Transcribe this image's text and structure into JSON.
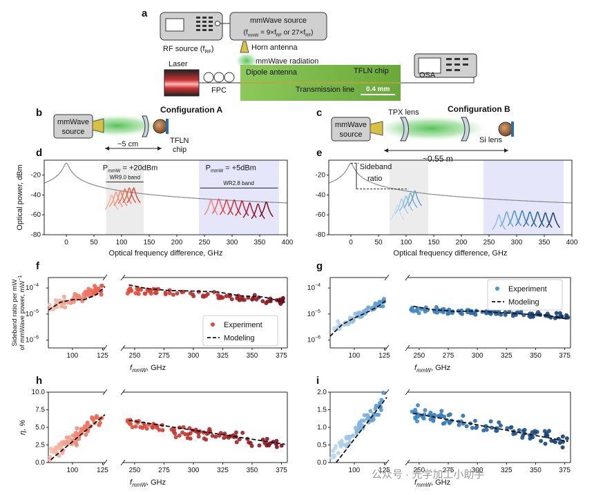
{
  "panel_labels": {
    "a": "a",
    "b": "b",
    "c": "c",
    "d": "d",
    "e": "e",
    "f": "f",
    "g": "g",
    "h": "h",
    "i": "i"
  },
  "setup": {
    "rf_source": "RF source (f",
    "rf_sub": "RF",
    "rf_close": ")",
    "mmw_source_title": "mmWave source",
    "mmw_formula_1": "(f",
    "mmw_formula_sub1": "mmW",
    "mmw_formula_2": " = 9×f",
    "mmw_formula_sub2": "RF",
    "mmw_formula_3": " or 27×f",
    "mmw_formula_sub3": "RF",
    "mmw_formula_4": ")",
    "horn_antenna": "Horn antenna",
    "mmw_radiation": "mmWave radiation",
    "laser": "Laser",
    "fpc": "FPC",
    "dipole_antenna": "Dipole antenna",
    "tfln_chip": "TFLN chip",
    "transmission_line": "Transmission line",
    "scale_bar": "0.4 mm",
    "osa": "OSA"
  },
  "config_a": {
    "title": "Configuration A",
    "source": [
      "mmWave",
      "source"
    ],
    "distance": "~5 cm",
    "chip": [
      "TFLN",
      "chip"
    ],
    "color": "#e0263a"
  },
  "config_b": {
    "title": "Configuration B",
    "source": [
      "mmWave",
      "source"
    ],
    "tpx": "TPX lens",
    "si": "Si lens",
    "distance": "~0.55 m",
    "color": "#1f77c4"
  },
  "chart_data": [
    {
      "id": "d",
      "type": "line",
      "xlabel": "Optical frequency difference, GHz",
      "ylabel": "Optical power, dBm",
      "xlim": [
        -40,
        400
      ],
      "ylim": [
        -80,
        -5
      ],
      "xticks": [
        0,
        50,
        100,
        150,
        200,
        250,
        300,
        350,
        400
      ],
      "yticks": [
        -80,
        -60,
        -40,
        -20
      ],
      "annotations": {
        "p_left": "P",
        "p_left_sub": "mmW",
        "p_left_val": " = +20dBm",
        "band_left": "WR9.0 band",
        "p_right": "P",
        "p_right_sub": "mmW",
        "p_right_val": " = +5dBm",
        "band_right": "WR2.8 band"
      },
      "bands": [
        [
          72,
          140
        ],
        [
          240,
          385
        ]
      ],
      "carrier": {
        "x": 0,
        "peak": -8
      },
      "series": [
        {
          "name": "s1",
          "center": 82,
          "peak": -40
        },
        {
          "name": "s2",
          "center": 90,
          "peak": -37
        },
        {
          "name": "s3",
          "center": 98,
          "peak": -36
        },
        {
          "name": "s4",
          "center": 106,
          "peak": -34
        },
        {
          "name": "s5",
          "center": 114,
          "peak": -33
        },
        {
          "name": "s6",
          "center": 122,
          "peak": -33
        },
        {
          "name": "r1",
          "center": 262,
          "peak": -45
        },
        {
          "name": "r2",
          "center": 276,
          "peak": -44
        },
        {
          "name": "r3",
          "center": 290,
          "peak": -45
        },
        {
          "name": "r4",
          "center": 304,
          "peak": -45
        },
        {
          "name": "r5",
          "center": 318,
          "peak": -46
        },
        {
          "name": "r6",
          "center": 332,
          "peak": -48
        },
        {
          "name": "r7",
          "center": 347,
          "peak": -49
        },
        {
          "name": "r8",
          "center": 362,
          "peak": -47
        }
      ],
      "colors": {
        "carrier": "#888888",
        "left": [
          "#f8b29a",
          "#f59a80",
          "#f2876a",
          "#ee7255",
          "#e85c42",
          "#e14733"
        ],
        "right": [
          "#f08a7a",
          "#e8605a",
          "#dc3c3a",
          "#cf2a2e",
          "#bf1e28",
          "#a6182a",
          "#8c1020",
          "#701020"
        ]
      }
    },
    {
      "id": "e",
      "type": "line",
      "xlabel": "Optical frequency difference, GHz",
      "xlim": [
        -40,
        400
      ],
      "ylim": [
        -80,
        -5
      ],
      "xticks": [
        0,
        50,
        100,
        150,
        200,
        250,
        300,
        350,
        400
      ],
      "yticks": [
        -80,
        -60,
        -40,
        -20
      ],
      "annotations": {
        "sideband": "Sideband",
        "ratio": "ratio"
      },
      "bands": [
        [
          70,
          140
        ],
        [
          240,
          385
        ]
      ],
      "carrier": {
        "x": 0,
        "peak": -8
      },
      "series": [
        {
          "name": "s1",
          "center": 84,
          "peak": -50
        },
        {
          "name": "s2",
          "center": 92,
          "peak": -44
        },
        {
          "name": "s3",
          "center": 100,
          "peak": -41
        },
        {
          "name": "s4",
          "center": 108,
          "peak": -38
        },
        {
          "name": "s5",
          "center": 116,
          "peak": -36
        },
        {
          "name": "r1",
          "center": 268,
          "peak": -60
        },
        {
          "name": "r2",
          "center": 282,
          "peak": -57
        },
        {
          "name": "r3",
          "center": 296,
          "peak": -56
        },
        {
          "name": "r4",
          "center": 310,
          "peak": -56
        },
        {
          "name": "r5",
          "center": 324,
          "peak": -57
        },
        {
          "name": "r6",
          "center": 338,
          "peak": -57
        },
        {
          "name": "r7",
          "center": 352,
          "peak": -58
        },
        {
          "name": "r8",
          "center": 366,
          "peak": -58
        }
      ],
      "colors": {
        "carrier": "#888888",
        "left": [
          "#c9e0f1",
          "#aed0ea",
          "#92c0e2",
          "#78b0d9",
          "#5ea0d0"
        ],
        "right": [
          "#8cbde3",
          "#6aa8da",
          "#4d93cf",
          "#3a80c2",
          "#2b6db2",
          "#205ea2",
          "#184e8e",
          "#103e78"
        ]
      }
    },
    {
      "id": "f",
      "type": "scatter",
      "ylabel": "Sideband ratio per mW of mmWave power, mW",
      "ylabel_line1": "Sideband ratio per mW",
      "ylabel_line2": "of mmWave power, mW",
      "ylabel_sup": "−1",
      "xlabel": "f",
      "xlabel_sub": "mmW",
      "xlabel_unit": ", GHz",
      "yscale": "log",
      "ylim_exp": [
        -6.3,
        -3.6
      ],
      "ytick_labels": [
        "10",
        "10",
        "10"
      ],
      "ytick_exps": [
        "−6",
        "−5",
        "−4"
      ],
      "left_xlim": [
        80,
        127
      ],
      "left_xticks": [
        100,
        125
      ],
      "right_xlim": [
        240,
        380
      ],
      "right_xticks": [
        250,
        275,
        300,
        325,
        350,
        375
      ],
      "legend": {
        "experiment": "Experiment",
        "modeling": "Modeling"
      },
      "model_left": [
        [
          80,
          -4.85
        ],
        [
          90,
          -4.55
        ],
        [
          100,
          -4.45
        ],
        [
          110,
          -4.45
        ],
        [
          120,
          -4.25
        ],
        [
          127,
          -3.95
        ]
      ],
      "model_right": [
        [
          245,
          -3.88
        ],
        [
          260,
          -4.02
        ],
        [
          280,
          -4.1
        ],
        [
          300,
          -4.12
        ],
        [
          320,
          -4.15
        ],
        [
          340,
          -4.3
        ],
        [
          360,
          -4.35
        ],
        [
          378,
          -4.55
        ]
      ],
      "trend_left": {
        "a": -4.75,
        "b": -4.0,
        "noise": 0.22
      },
      "trend_right": {
        "a": -4.05,
        "b": -4.5,
        "noise": 0.14
      },
      "n_left": 70,
      "n_right": 85,
      "color_from": "#f7c2ad",
      "color_mid": "#e84a3a",
      "color_to": "#7a0f1c",
      "legend_color": "#e8453a"
    },
    {
      "id": "g",
      "type": "scatter",
      "xlabel": "f",
      "xlabel_sub": "mmW",
      "xlabel_unit": ", GHz",
      "yscale": "log",
      "ylim_exp": [
        -6.3,
        -3.6
      ],
      "ytick_labels": [
        "10",
        "10",
        "10"
      ],
      "ytick_exps": [
        "−6",
        "−5",
        "−4"
      ],
      "left_xlim": [
        80,
        127
      ],
      "left_xticks": [
        100,
        125
      ],
      "right_xlim": [
        240,
        380
      ],
      "right_xticks": [
        250,
        275,
        300,
        325,
        350,
        375
      ],
      "legend": {
        "experiment": "Experiment",
        "modeling": "Modeling"
      },
      "model_left": [
        [
          80,
          -5.85
        ],
        [
          90,
          -5.4
        ],
        [
          100,
          -5.15
        ],
        [
          110,
          -4.95
        ],
        [
          120,
          -4.7
        ],
        [
          127,
          -4.45
        ]
      ],
      "model_right": [
        [
          245,
          -4.7
        ],
        [
          260,
          -4.82
        ],
        [
          280,
          -4.9
        ],
        [
          300,
          -4.88
        ],
        [
          320,
          -4.95
        ],
        [
          340,
          -5.0
        ],
        [
          360,
          -5.05
        ],
        [
          378,
          -5.2
        ]
      ],
      "trend_left": {
        "a": -5.6,
        "b": -4.5,
        "noise": 0.18
      },
      "trend_right": {
        "a": -4.82,
        "b": -5.08,
        "noise": 0.12
      },
      "n_left": 60,
      "n_right": 100,
      "color_from": "#c5ddf0",
      "color_mid": "#3f8ccb",
      "color_to": "#103a6e",
      "legend_color": "#4a98d0"
    },
    {
      "id": "h",
      "type": "scatter",
      "ylabel": "η, %",
      "xlabel": "f",
      "xlabel_sub": "mmW",
      "xlabel_unit": ", GHz",
      "ylim": [
        0,
        10
      ],
      "yticks": [
        0,
        2.5,
        5.0,
        7.5,
        10.0
      ],
      "ytick_labels": [
        "0.0",
        "2.5",
        "5.0",
        "7.5",
        "10.0"
      ],
      "left_xlim": [
        80,
        127
      ],
      "left_xticks": [
        100,
        125
      ],
      "right_xlim": [
        240,
        380
      ],
      "right_xticks": [
        250,
        275,
        300,
        325,
        350,
        375
      ],
      "model_left": [
        [
          82,
          0.4
        ],
        [
          127,
          6.8
        ]
      ],
      "model_right": [
        [
          245,
          6.0
        ],
        [
          378,
          2.6
        ]
      ],
      "trend_left": {
        "a": 0.8,
        "b": 6.5,
        "noise": 1.3
      },
      "trend_right": {
        "a": 5.6,
        "b": 2.5,
        "noise": 0.9
      },
      "n_left": 80,
      "n_right": 90,
      "color_from": "#f7c2ad",
      "color_mid": "#e84a3a",
      "color_to": "#7a0f1c"
    },
    {
      "id": "i",
      "type": "scatter",
      "xlabel": "f",
      "xlabel_sub": "mmW",
      "xlabel_unit": ", GHz",
      "ylim": [
        0,
        2.0
      ],
      "yticks": [
        0,
        0.5,
        1.0,
        1.5,
        2.0
      ],
      "ytick_labels": [
        "0.0",
        "0.5",
        "1.0",
        "1.5",
        "2.0"
      ],
      "left_xlim": [
        80,
        127
      ],
      "left_xticks": [
        100,
        125
      ],
      "right_xlim": [
        240,
        380
      ],
      "right_xticks": [
        250,
        275,
        300,
        325,
        350,
        375
      ],
      "model_left": [
        [
          85,
          0.0
        ],
        [
          127,
          1.85
        ]
      ],
      "model_right": [
        [
          245,
          1.4
        ],
        [
          378,
          0.6
        ]
      ],
      "trend_left": {
        "a": 0.15,
        "b": 1.75,
        "noise": 0.22
      },
      "trend_right": {
        "a": 1.4,
        "b": 0.6,
        "noise": 0.22
      },
      "n_left": 70,
      "n_right": 100,
      "color_from": "#c5ddf0",
      "color_mid": "#3f8ccb",
      "color_to": "#103a6e"
    }
  ],
  "watermark": "公众号 · 光学加工小助手"
}
